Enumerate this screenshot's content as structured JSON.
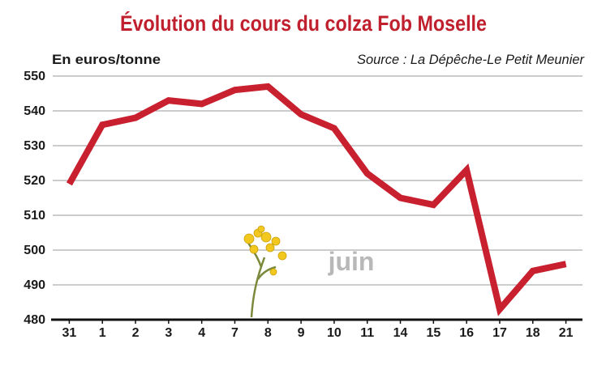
{
  "chart_data": {
    "type": "line",
    "title": "Évolution du cours du colza Fob Moselle",
    "y_axis_label": "En euros/tonne",
    "source": "Source : La Dépêche-Le Petit Meunier",
    "annotation": "juin",
    "categories": [
      "31",
      "1",
      "2",
      "3",
      "4",
      "7",
      "8",
      "9",
      "10",
      "11",
      "14",
      "15",
      "16",
      "17",
      "18",
      "21"
    ],
    "values": [
      519,
      536,
      538,
      543,
      542,
      546,
      547,
      539,
      535,
      522,
      515,
      513,
      523,
      483,
      494,
      496
    ],
    "color": "#c8202f",
    "ylim": [
      480,
      550
    ],
    "yticks": [
      480,
      490,
      500,
      510,
      520,
      530,
      540,
      550
    ],
    "grid": true
  }
}
